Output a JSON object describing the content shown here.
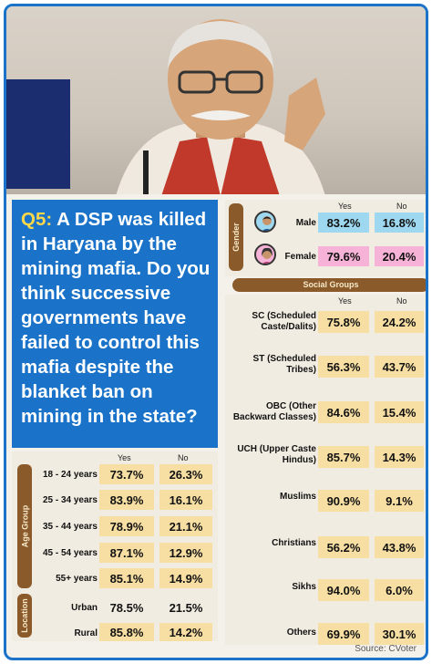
{
  "question": {
    "number": "Q5:",
    "text": " A DSP was killed in Haryana by the mining mafia. Do you think successive governments have failed to control this mafia despite the blanket ban on mining in the state?"
  },
  "gender": {
    "tab": "Gender",
    "headers": {
      "yes": "Yes",
      "no": "No"
    },
    "rows": [
      {
        "label": "Male",
        "yes": "83.2%",
        "no": "16.8%"
      },
      {
        "label": "Female",
        "yes": "79.6%",
        "no": "20.4%"
      }
    ]
  },
  "social": {
    "title": "Social Groups",
    "headers": {
      "yes": "Yes",
      "no": "No"
    },
    "rows": [
      {
        "label": "SC (Scheduled Caste/Dalits)",
        "yes": "75.8%",
        "no": "24.2%"
      },
      {
        "label": "ST (Scheduled Tribes)",
        "yes": "56.3%",
        "no": "43.7%"
      },
      {
        "label": "OBC (Other Backward Classes)",
        "yes": "84.6%",
        "no": "15.4%"
      },
      {
        "label": "UCH (Upper Caste Hindus)",
        "yes": "85.7%",
        "no": "14.3%"
      },
      {
        "label": "Muslims",
        "yes": "90.9%",
        "no": "9.1%"
      },
      {
        "label": "Christians",
        "yes": "56.2%",
        "no": "43.8%"
      },
      {
        "label": "Sikhs",
        "yes": "94.0%",
        "no": "6.0%"
      },
      {
        "label": "Others",
        "yes": "69.9%",
        "no": "30.1%"
      }
    ]
  },
  "age": {
    "tab": "Age Group",
    "headers": {
      "yes": "Yes",
      "no": "No"
    },
    "rows": [
      {
        "label": "18 - 24 years",
        "yes": "73.7%",
        "no": "26.3%"
      },
      {
        "label": "25 - 34 years",
        "yes": "83.9%",
        "no": "16.1%"
      },
      {
        "label": "35 - 44 years",
        "yes": "78.9%",
        "no": "21.1%"
      },
      {
        "label": "45 - 54 years",
        "yes": "87.1%",
        "no": "12.9%"
      },
      {
        "label": "55+ years",
        "yes": "85.1%",
        "no": "14.9%"
      }
    ]
  },
  "location": {
    "tab": "Location",
    "rows": [
      {
        "label": "Urban",
        "yes": "78.5%",
        "no": "21.5%"
      },
      {
        "label": "Rural",
        "yes": "85.8%",
        "no": "14.2%"
      }
    ]
  },
  "source": "Source: CVoter"
}
